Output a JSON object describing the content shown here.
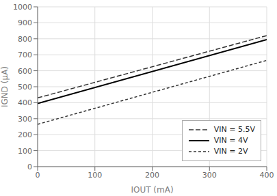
{
  "chart_data": {
    "type": "line",
    "x_label": "IOUT (mA)",
    "y_label": "IGND (μA)",
    "x": [
      0,
      400
    ],
    "series": [
      {
        "name": "VIN = 5.5V",
        "color": "#333333",
        "line_style": "longdash",
        "values": [
          430,
          820
        ]
      },
      {
        "name": "VIN = 4V",
        "color": "#000000",
        "line_style": "solid",
        "values": [
          395,
          795
        ]
      },
      {
        "name": "VIN = 2V",
        "color": "#333333",
        "line_style": "shortdash",
        "values": [
          265,
          665
        ]
      }
    ],
    "xlim": [
      0,
      400
    ],
    "ylim": [
      0,
      1000
    ],
    "xticks": [
      0,
      100,
      200,
      300,
      400
    ],
    "yticks": [
      0,
      100,
      200,
      300,
      400,
      500,
      600,
      700,
      800,
      900,
      1000
    ],
    "grid": true,
    "legend": "lower right"
  }
}
